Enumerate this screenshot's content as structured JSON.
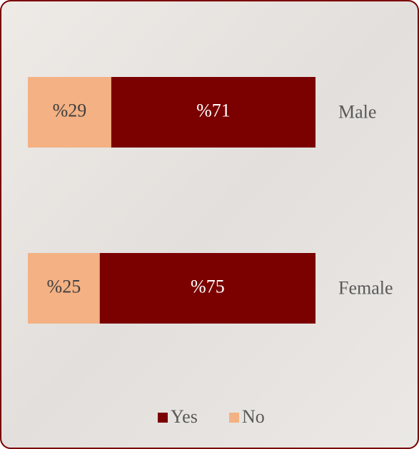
{
  "chart_data": {
    "type": "stacked_bar_horizontal",
    "categories": [
      "Male",
      "Female"
    ],
    "series": [
      {
        "name": "Yes",
        "color": "#7b0000",
        "values": [
          71,
          75
        ],
        "value_labels": [
          "%71",
          "%75"
        ]
      },
      {
        "name": "No",
        "color": "#f4b183",
        "values": [
          29,
          25
        ],
        "value_labels": [
          "%29",
          "%25"
        ]
      }
    ],
    "legend": "bottom"
  }
}
